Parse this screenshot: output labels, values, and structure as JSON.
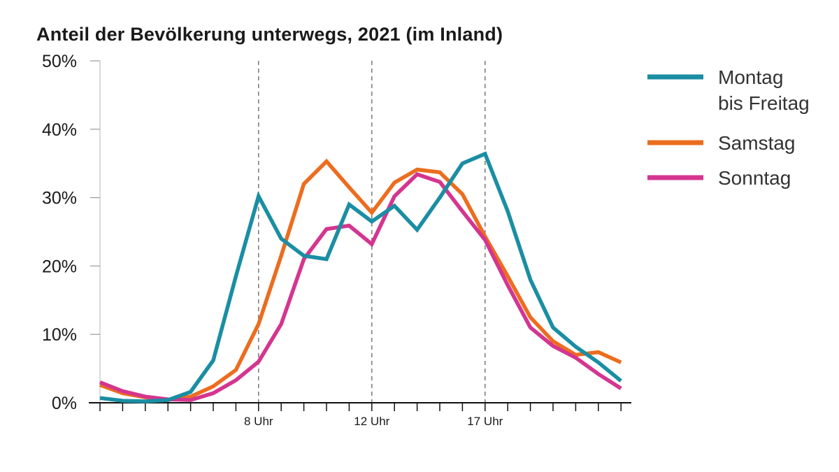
{
  "chart_data": {
    "type": "line",
    "title": "Anteil der Bevölkerung unterwegs, 2021 (im Inland)",
    "xlabel": "",
    "ylabel": "",
    "y_ticks": [
      "0%",
      "10%",
      "20%",
      "30%",
      "40%",
      "50%"
    ],
    "ylim": [
      0,
      50
    ],
    "x": [
      0,
      1,
      2,
      3,
      4,
      5,
      6,
      7,
      8,
      9,
      10,
      11,
      12,
      13,
      14,
      15,
      16,
      17,
      18,
      19,
      20,
      21,
      22,
      23
    ],
    "x_labels": [
      {
        "x": 7,
        "label": "8 Uhr"
      },
      {
        "x": 12,
        "label": "12 Uhr"
      },
      {
        "x": 17,
        "label": "17 Uhr"
      }
    ],
    "grid": "dashed vertical lines at 8 Uhr, 12 Uhr, 17 Uhr",
    "legend_position": "right",
    "series": [
      {
        "name": "Montag bis Freitag",
        "legend_lines": [
          "Montag",
          "bis Freitag"
        ],
        "color": "#1a8ea3",
        "values": [
          0.7,
          0.3,
          0.2,
          0.4,
          1.6,
          6.2,
          18.5,
          30.2,
          24.0,
          21.5,
          21.0,
          29.0,
          26.5,
          28.8,
          25.3,
          30.0,
          35.0,
          36.4,
          28.0,
          18.0,
          11.0,
          8.2,
          5.9,
          3.2
        ]
      },
      {
        "name": "Samstag",
        "legend_lines": [
          "Samstag"
        ],
        "color": "#ec6d1f",
        "values": [
          2.6,
          1.4,
          0.8,
          0.4,
          0.9,
          2.4,
          4.8,
          11.5,
          21.5,
          32.0,
          35.3,
          31.5,
          27.8,
          32.2,
          34.1,
          33.7,
          30.5,
          24.3,
          18.5,
          12.5,
          9.0,
          7.0,
          7.4,
          5.9
        ]
      },
      {
        "name": "Sonntag",
        "legend_lines": [
          "Sonntag"
        ],
        "color": "#d4358f",
        "values": [
          3.0,
          1.7,
          0.9,
          0.5,
          0.4,
          1.4,
          3.3,
          6.0,
          11.5,
          21.0,
          25.4,
          25.9,
          23.2,
          30.2,
          33.4,
          32.3,
          28.0,
          23.8,
          17.2,
          11.0,
          8.3,
          6.6,
          4.2,
          2.1
        ]
      }
    ]
  }
}
